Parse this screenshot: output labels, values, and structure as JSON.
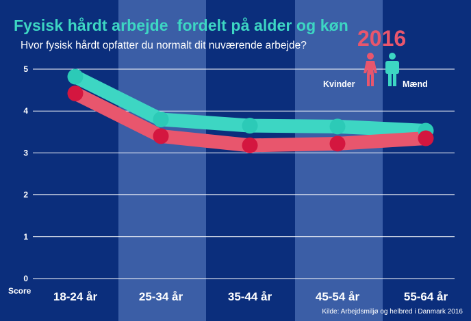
{
  "title": "Fysisk hårdt arbejde  fordelt på alder og køn",
  "subtitle": "Hvor fysisk hårdt opfatter du normalt dit nuværende arbejde?",
  "year": "2016",
  "legend": {
    "women": "Kvinder",
    "men": "Mænd"
  },
  "source": "Kilde: Arbejdsmiljø og helbred i Danmark 2016",
  "colors": {
    "background": "#0b2e7c",
    "band": "#3b5ea6",
    "women": "#e8566d",
    "women_marker": "#d4163f",
    "men": "#3dd6c3",
    "men_marker": "#2ccab7",
    "title": "#3dd6c3"
  },
  "chart_data": {
    "type": "line",
    "categories": [
      "18-24 år",
      "25-34 år",
      "35-44 år",
      "45-54 år",
      "55-64 år"
    ],
    "series": [
      {
        "name": "Mænd",
        "values": [
          4.82,
          3.8,
          3.65,
          3.63,
          3.53
        ]
      },
      {
        "name": "Kvinder",
        "values": [
          4.42,
          3.4,
          3.18,
          3.22,
          3.35
        ]
      }
    ],
    "ylabel": "Score",
    "yticks": [
      "0",
      "1",
      "2",
      "3",
      "4",
      "5"
    ],
    "ylim": [
      0,
      5
    ],
    "grid": true,
    "legend_position": "top-right"
  }
}
